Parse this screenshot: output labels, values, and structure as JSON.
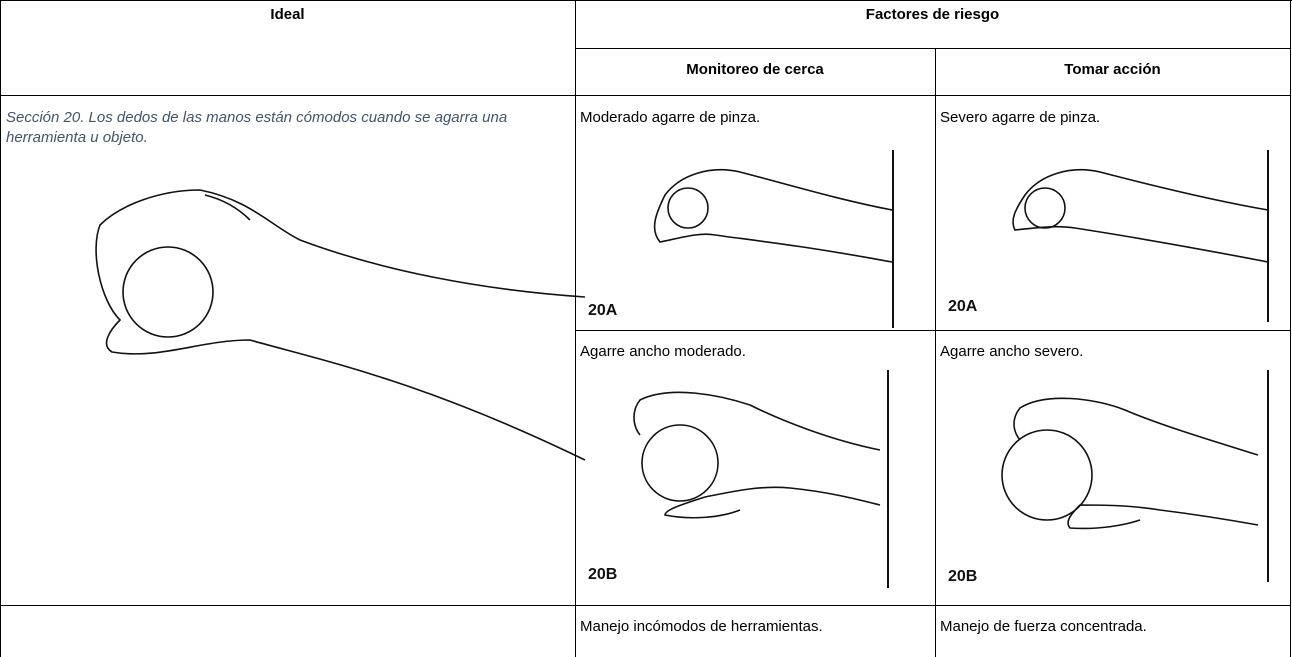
{
  "table": {
    "header": {
      "ideal": "Ideal",
      "risk_factors": "Factores de riesgo",
      "monitor": "Monitoreo de cerca",
      "action": "Tomar acción"
    },
    "ideal_note": "Sección 20. Los dedos de las manos están cómodos cuando se agarra una  herramienta u objeto.",
    "rows": [
      {
        "monitor": "Moderado agarre de pinza.",
        "monitor_figure": "20A",
        "action": "Severo agarre de pinza.",
        "action_figure": "20A"
      },
      {
        "monitor": "Agarre ancho moderado.",
        "monitor_figure": "20B",
        "action": "Agarre ancho severo.",
        "action_figure": "20B"
      },
      {
        "monitor": "Manejo incómodos de herramientas.",
        "action": "Manejo de fuerza concentrada."
      }
    ]
  }
}
